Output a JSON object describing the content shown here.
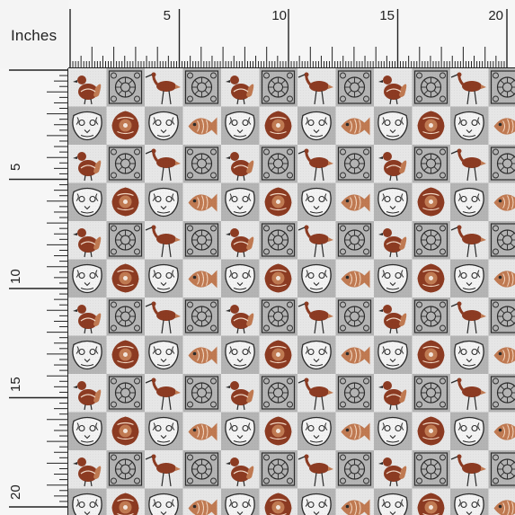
{
  "ruler": {
    "unit_label": "Inches",
    "top_labels": [
      "5",
      "10",
      "15",
      "20"
    ],
    "left_labels": [
      "5",
      "10",
      "15",
      "20"
    ]
  },
  "fabric": {
    "motifs": [
      "bird-icon",
      "heron-icon",
      "mandala-tile-icon",
      "tiger-face-icon",
      "fish-icon",
      "floral-tile-icon"
    ],
    "colors": {
      "tile_light": "#e6e6e6",
      "tile_dark": "#b4b4b4",
      "rust": "#8c3b22",
      "terracotta": "#c07a52",
      "ink": "#2b2b2b"
    }
  }
}
